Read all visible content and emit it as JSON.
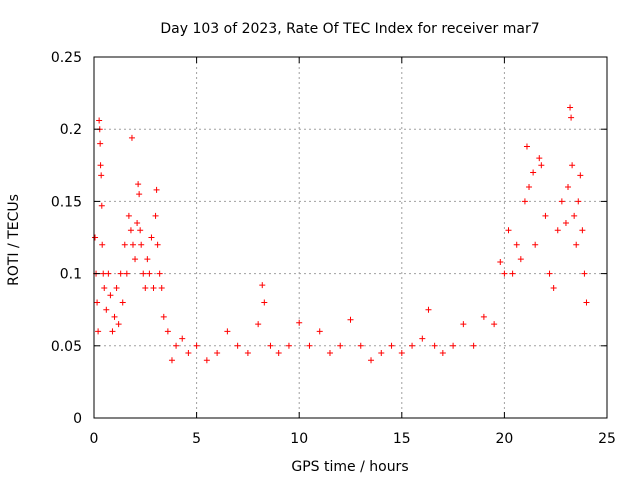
{
  "chart_data": {
    "type": "scatter",
    "title": "Day 103 of 2023, Rate Of TEC Index for receiver mar7",
    "xlabel": "GPS time / hours",
    "ylabel": "ROTI / TECUs",
    "xlim": [
      0,
      25
    ],
    "ylim": [
      0,
      0.25
    ],
    "xticks": [
      0,
      5,
      10,
      15,
      20,
      25
    ],
    "xtick_labels": [
      "0",
      "5",
      "10",
      "15",
      "20",
      "25"
    ],
    "yticks": [
      0,
      0.05,
      0.1,
      0.15,
      0.2,
      0.25
    ],
    "ytick_labels": [
      "0",
      "0.05",
      "0.1",
      "0.15",
      "0.2",
      "0.25"
    ],
    "grid": true,
    "marker": "+",
    "color": "#ff0000",
    "series": [
      {
        "points": [
          [
            0.05,
            0.125
          ],
          [
            0.1,
            0.1
          ],
          [
            0.15,
            0.08
          ],
          [
            0.2,
            0.06
          ],
          [
            0.25,
            0.206
          ],
          [
            0.28,
            0.2
          ],
          [
            0.3,
            0.19
          ],
          [
            0.32,
            0.175
          ],
          [
            0.35,
            0.168
          ],
          [
            0.38,
            0.147
          ],
          [
            0.4,
            0.12
          ],
          [
            0.45,
            0.1
          ],
          [
            0.5,
            0.09
          ],
          [
            0.6,
            0.075
          ],
          [
            0.7,
            0.1
          ],
          [
            0.8,
            0.085
          ],
          [
            0.9,
            0.06
          ],
          [
            1.0,
            0.07
          ],
          [
            1.1,
            0.09
          ],
          [
            1.2,
            0.065
          ],
          [
            1.3,
            0.1
          ],
          [
            1.4,
            0.08
          ],
          [
            1.5,
            0.12
          ],
          [
            1.6,
            0.1
          ],
          [
            1.7,
            0.14
          ],
          [
            1.8,
            0.13
          ],
          [
            1.85,
            0.194
          ],
          [
            1.9,
            0.12
          ],
          [
            2.0,
            0.11
          ],
          [
            2.1,
            0.135
          ],
          [
            2.15,
            0.162
          ],
          [
            2.2,
            0.155
          ],
          [
            2.25,
            0.13
          ],
          [
            2.3,
            0.12
          ],
          [
            2.4,
            0.1
          ],
          [
            2.5,
            0.09
          ],
          [
            2.6,
            0.11
          ],
          [
            2.7,
            0.1
          ],
          [
            2.8,
            0.125
          ],
          [
            2.9,
            0.09
          ],
          [
            3.0,
            0.14
          ],
          [
            3.05,
            0.158
          ],
          [
            3.1,
            0.12
          ],
          [
            3.2,
            0.1
          ],
          [
            3.3,
            0.09
          ],
          [
            3.4,
            0.07
          ],
          [
            3.6,
            0.06
          ],
          [
            3.8,
            0.04
          ],
          [
            4.0,
            0.05
          ],
          [
            4.3,
            0.055
          ],
          [
            4.6,
            0.045
          ],
          [
            5.0,
            0.05
          ],
          [
            5.5,
            0.04
          ],
          [
            6.0,
            0.045
          ],
          [
            6.5,
            0.06
          ],
          [
            7.0,
            0.05
          ],
          [
            7.5,
            0.045
          ],
          [
            8.0,
            0.065
          ],
          [
            8.2,
            0.092
          ],
          [
            8.3,
            0.08
          ],
          [
            8.6,
            0.05
          ],
          [
            9.0,
            0.045
          ],
          [
            9.5,
            0.05
          ],
          [
            10.0,
            0.066
          ],
          [
            10.5,
            0.05
          ],
          [
            11.0,
            0.06
          ],
          [
            11.5,
            0.045
          ],
          [
            12.0,
            0.05
          ],
          [
            12.5,
            0.068
          ],
          [
            13.0,
            0.05
          ],
          [
            13.5,
            0.04
          ],
          [
            14.0,
            0.045
          ],
          [
            14.5,
            0.05
          ],
          [
            15.0,
            0.045
          ],
          [
            15.5,
            0.05
          ],
          [
            16.0,
            0.055
          ],
          [
            16.3,
            0.075
          ],
          [
            16.6,
            0.05
          ],
          [
            17.0,
            0.045
          ],
          [
            17.5,
            0.05
          ],
          [
            18.0,
            0.065
          ],
          [
            18.5,
            0.05
          ],
          [
            19.0,
            0.07
          ],
          [
            19.5,
            0.065
          ],
          [
            19.8,
            0.108
          ],
          [
            20.0,
            0.1
          ],
          [
            20.2,
            0.13
          ],
          [
            20.4,
            0.1
          ],
          [
            20.6,
            0.12
          ],
          [
            20.8,
            0.11
          ],
          [
            21.0,
            0.15
          ],
          [
            21.1,
            0.188
          ],
          [
            21.2,
            0.16
          ],
          [
            21.4,
            0.17
          ],
          [
            21.5,
            0.12
          ],
          [
            21.7,
            0.18
          ],
          [
            21.8,
            0.175
          ],
          [
            22.0,
            0.14
          ],
          [
            22.2,
            0.1
          ],
          [
            22.4,
            0.09
          ],
          [
            22.6,
            0.13
          ],
          [
            22.8,
            0.15
          ],
          [
            23.0,
            0.135
          ],
          [
            23.1,
            0.16
          ],
          [
            23.2,
            0.215
          ],
          [
            23.25,
            0.208
          ],
          [
            23.3,
            0.175
          ],
          [
            23.4,
            0.14
          ],
          [
            23.5,
            0.12
          ],
          [
            23.6,
            0.15
          ],
          [
            23.7,
            0.168
          ],
          [
            23.8,
            0.13
          ],
          [
            23.9,
            0.1
          ],
          [
            24.0,
            0.08
          ]
        ]
      }
    ]
  }
}
